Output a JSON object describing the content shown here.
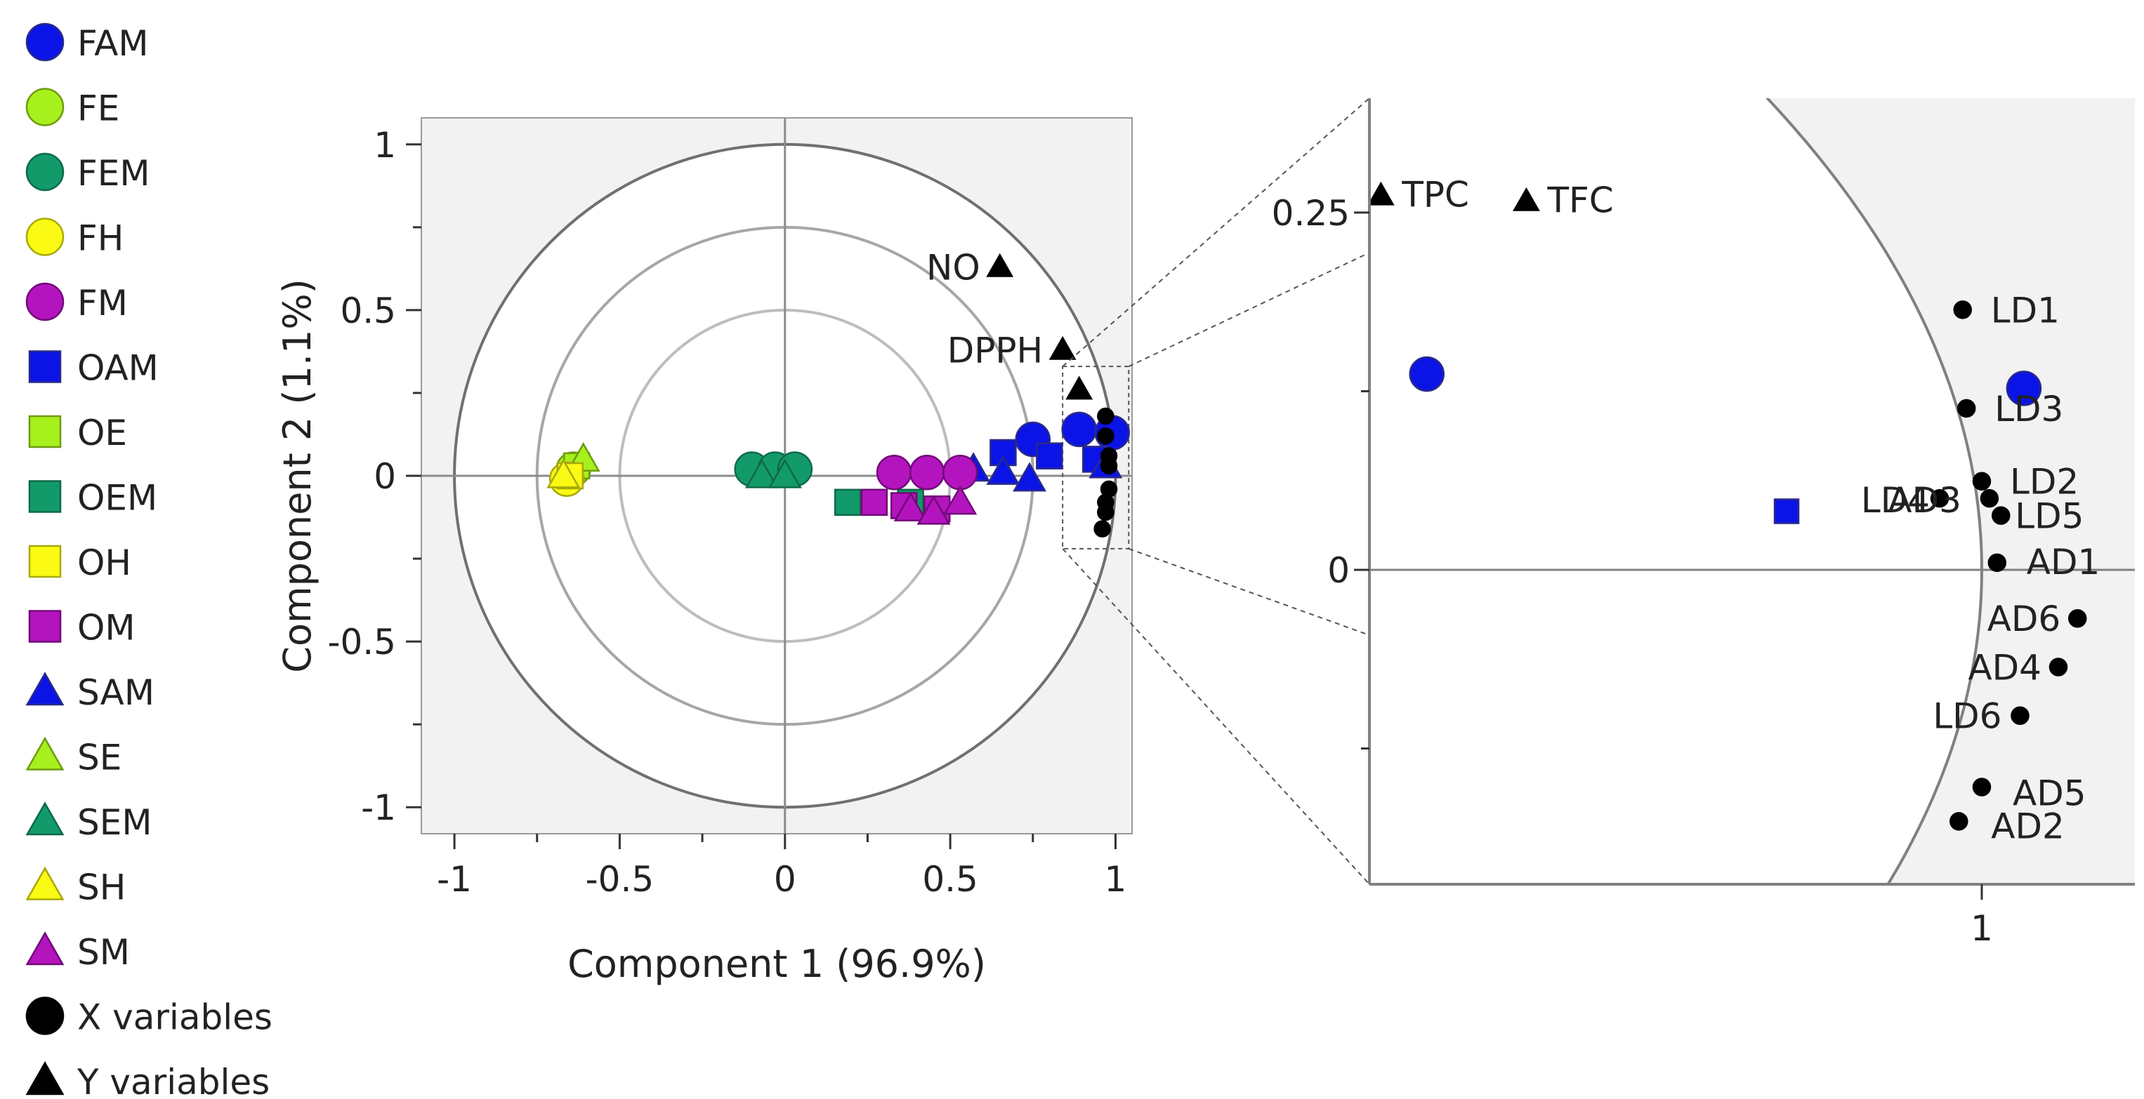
{
  "legend": [
    {
      "label": "FAM",
      "shape": "circle",
      "fill": "#0a14e6",
      "stroke": "#2a2a8a"
    },
    {
      "label": "FE",
      "shape": "circle",
      "fill": "#a6f01e",
      "stroke": "#6f9a10"
    },
    {
      "label": "FEM",
      "shape": "circle",
      "fill": "#139a6a",
      "stroke": "#0d6a48"
    },
    {
      "label": "FH",
      "shape": "circle",
      "fill": "#fafa14",
      "stroke": "#a8a80c"
    },
    {
      "label": "FM",
      "shape": "circle",
      "fill": "#b414be",
      "stroke": "#700a78"
    },
    {
      "label": "OAM",
      "shape": "square",
      "fill": "#0a14e6",
      "stroke": "#2a2a8a"
    },
    {
      "label": "OE",
      "shape": "square",
      "fill": "#a6f01e",
      "stroke": "#6f9a10"
    },
    {
      "label": "OEM",
      "shape": "square",
      "fill": "#139a6a",
      "stroke": "#0d6a48"
    },
    {
      "label": "OH",
      "shape": "square",
      "fill": "#fafa14",
      "stroke": "#a8a80c"
    },
    {
      "label": "OM",
      "shape": "square",
      "fill": "#b414be",
      "stroke": "#700a78"
    },
    {
      "label": "SAM",
      "shape": "triangle",
      "fill": "#0a14e6",
      "stroke": "#2a2a8a"
    },
    {
      "label": "SE",
      "shape": "triangle",
      "fill": "#a6f01e",
      "stroke": "#6f9a10"
    },
    {
      "label": "SEM",
      "shape": "triangle",
      "fill": "#139a6a",
      "stroke": "#0d6a48"
    },
    {
      "label": "SH",
      "shape": "triangle",
      "fill": "#fafa14",
      "stroke": "#a8a80c"
    },
    {
      "label": "SM",
      "shape": "triangle",
      "fill": "#b414be",
      "stroke": "#700a78"
    },
    {
      "label": "X variables",
      "shape": "circle",
      "fill": "#000000",
      "stroke": "#000000"
    },
    {
      "label": "Y variables",
      "shape": "triangle",
      "fill": "#000000",
      "stroke": "#000000"
    }
  ],
  "chart_data": [
    {
      "type": "scatter",
      "title": "",
      "xlabel": "Component 1 (96.9%)",
      "ylabel": "Component 2 (1.1%)",
      "xlim": [
        -1.1,
        1.05
      ],
      "ylim": [
        -1.08,
        1.08
      ],
      "xticks": [
        -1,
        -0.5,
        0,
        0.5,
        1
      ],
      "xtick_labels": [
        "-1",
        "-0.5",
        "0",
        "0.5",
        "1"
      ],
      "yticks": [
        -1,
        -0.5,
        0,
        0.5,
        1
      ],
      "ytick_labels": [
        "-1",
        "-0.5",
        "0",
        "0.5",
        "1"
      ],
      "circle_radii": [
        0.5,
        0.75,
        1.0
      ],
      "grid": false,
      "zoom_region": {
        "x": [
          0.84,
          1.04
        ],
        "y": [
          -0.22,
          0.33
        ]
      },
      "points": [
        {
          "group": "FAM",
          "shape": "circle",
          "x": 0.75,
          "y": 0.11
        },
        {
          "group": "FAM",
          "shape": "circle",
          "x": 0.89,
          "y": 0.14
        },
        {
          "group": "FAM",
          "shape": "circle",
          "x": 0.99,
          "y": 0.13
        },
        {
          "group": "OAM",
          "shape": "square",
          "x": 0.66,
          "y": 0.07
        },
        {
          "group": "OAM",
          "shape": "square",
          "x": 0.8,
          "y": 0.06
        },
        {
          "group": "OAM",
          "shape": "square",
          "x": 0.94,
          "y": 0.05
        },
        {
          "group": "SAM",
          "shape": "triangle",
          "x": 0.57,
          "y": 0.02
        },
        {
          "group": "SAM",
          "shape": "triangle",
          "x": 0.66,
          "y": 0.01
        },
        {
          "group": "SAM",
          "shape": "triangle",
          "x": 0.74,
          "y": -0.01
        },
        {
          "group": "SAM",
          "shape": "triangle",
          "x": 0.97,
          "y": 0.03
        },
        {
          "group": "FE",
          "shape": "circle",
          "x": -0.64,
          "y": 0.02
        },
        {
          "group": "OE",
          "shape": "square",
          "x": -0.63,
          "y": 0.03
        },
        {
          "group": "SE",
          "shape": "triangle",
          "x": -0.61,
          "y": 0.05
        },
        {
          "group": "FH",
          "shape": "circle",
          "x": -0.66,
          "y": -0.01
        },
        {
          "group": "OH",
          "shape": "square",
          "x": -0.65,
          "y": 0.0
        },
        {
          "group": "SH",
          "shape": "triangle",
          "x": -0.67,
          "y": 0.0
        },
        {
          "group": "FEM",
          "shape": "circle",
          "x": -0.1,
          "y": 0.02
        },
        {
          "group": "FEM",
          "shape": "circle",
          "x": -0.03,
          "y": 0.02
        },
        {
          "group": "FEM",
          "shape": "circle",
          "x": 0.03,
          "y": 0.02
        },
        {
          "group": "SEM",
          "shape": "triangle",
          "x": -0.07,
          "y": 0.0
        },
        {
          "group": "SEM",
          "shape": "triangle",
          "x": 0.0,
          "y": 0.0
        },
        {
          "group": "OEM",
          "shape": "square",
          "x": 0.19,
          "y": -0.08
        },
        {
          "group": "OEM",
          "shape": "square",
          "x": 0.38,
          "y": -0.08
        },
        {
          "group": "FM",
          "shape": "circle",
          "x": 0.33,
          "y": 0.01
        },
        {
          "group": "FM",
          "shape": "circle",
          "x": 0.43,
          "y": 0.01
        },
        {
          "group": "FM",
          "shape": "circle",
          "x": 0.53,
          "y": 0.01
        },
        {
          "group": "OM",
          "shape": "square",
          "x": 0.27,
          "y": -0.08
        },
        {
          "group": "OM",
          "shape": "square",
          "x": 0.36,
          "y": -0.09
        },
        {
          "group": "OM",
          "shape": "square",
          "x": 0.46,
          "y": -0.1
        },
        {
          "group": "SM",
          "shape": "triangle",
          "x": 0.38,
          "y": -0.1
        },
        {
          "group": "SM",
          "shape": "triangle",
          "x": 0.45,
          "y": -0.11
        },
        {
          "group": "SM",
          "shape": "triangle",
          "x": 0.53,
          "y": -0.08
        }
      ],
      "x_variables": [
        {
          "x": 0.97,
          "y": 0.18
        },
        {
          "x": 0.97,
          "y": 0.12
        },
        {
          "x": 0.98,
          "y": 0.06
        },
        {
          "x": 0.98,
          "y": 0.03
        },
        {
          "x": 0.98,
          "y": -0.04
        },
        {
          "x": 0.97,
          "y": -0.08
        },
        {
          "x": 0.97,
          "y": -0.11
        },
        {
          "x": 0.96,
          "y": -0.16
        }
      ],
      "y_variables": [
        {
          "label": "NO",
          "x": 0.65,
          "y": 0.63
        },
        {
          "label": "DPPH",
          "x": 0.84,
          "y": 0.38
        },
        {
          "label": "",
          "x": 0.89,
          "y": 0.26
        }
      ]
    },
    {
      "type": "scatter",
      "title": "",
      "xlabel": "",
      "ylabel": "",
      "xlim": [
        0.84,
        1.04
      ],
      "ylim": [
        -0.22,
        0.33
      ],
      "xticks": [
        1.0
      ],
      "xtick_labels": [
        "1"
      ],
      "yticks": [
        0,
        0.25
      ],
      "ytick_labels": [
        "0",
        "0.25"
      ],
      "minor_yticks": [
        0.125,
        -0.125
      ],
      "unit_circle_radius": 1.0,
      "points": [
        {
          "group": "FAM",
          "shape": "circle",
          "x": 0.855,
          "y": 0.137
        },
        {
          "group": "FAM",
          "shape": "circle",
          "x": 1.011,
          "y": 0.127
        },
        {
          "group": "OAM",
          "shape": "square",
          "x": 0.949,
          "y": 0.041
        }
      ],
      "x_variables": [
        {
          "label": "LD1",
          "x": 0.995,
          "y": 0.182
        },
        {
          "label": "LD3",
          "x": 0.996,
          "y": 0.113
        },
        {
          "label": "LD2",
          "x": 1.0,
          "y": 0.062
        },
        {
          "label": "LD5",
          "x": 1.005,
          "y": 0.038
        },
        {
          "label": "LD4",
          "x": 0.989,
          "y": 0.05
        },
        {
          "label": "AD3",
          "x": 1.002,
          "y": 0.05
        },
        {
          "label": "AD1",
          "x": 1.004,
          "y": 0.005
        },
        {
          "label": "AD6",
          "x": 1.025,
          "y": -0.034
        },
        {
          "label": "AD4",
          "x": 1.02,
          "y": -0.068
        },
        {
          "label": "LD6",
          "x": 1.01,
          "y": -0.102
        },
        {
          "label": "AD5",
          "x": 1.0,
          "y": -0.152
        },
        {
          "label": "AD2",
          "x": 0.994,
          "y": -0.176
        }
      ],
      "y_variables": [
        {
          "label": "TPC",
          "x": 0.843,
          "y": 0.262
        },
        {
          "label": "TFC",
          "x": 0.881,
          "y": 0.258
        }
      ]
    }
  ]
}
